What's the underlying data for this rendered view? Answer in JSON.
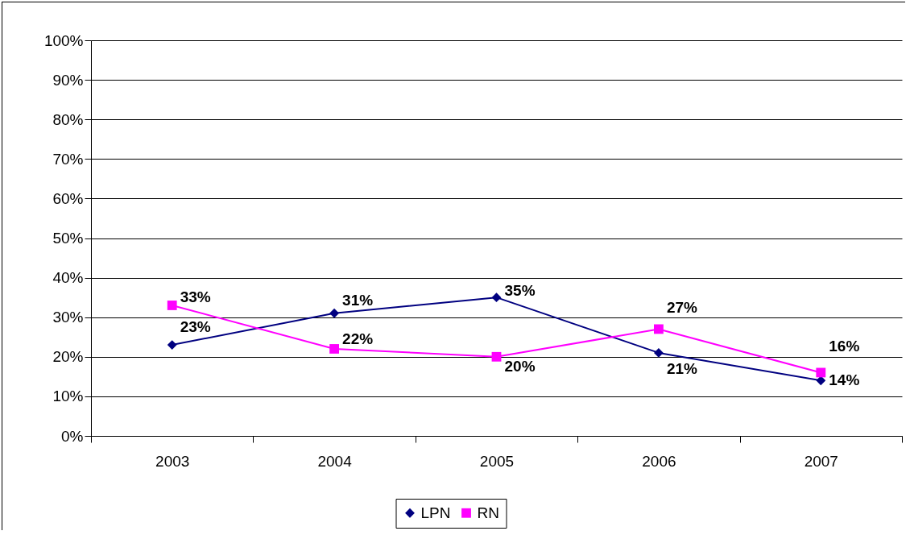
{
  "chart_data": {
    "type": "line",
    "categories": [
      "2003",
      "2004",
      "2005",
      "2006",
      "2007"
    ],
    "series": [
      {
        "name": "LPN",
        "color": "#000080",
        "marker": "diamond",
        "values": [
          23,
          31,
          35,
          21,
          14
        ],
        "value_labels": [
          "23%",
          "31%",
          "35%",
          "21%",
          "14%"
        ]
      },
      {
        "name": "RN",
        "color": "#ff00ff",
        "marker": "square",
        "values": [
          33,
          22,
          20,
          27,
          16
        ],
        "value_labels": [
          "33%",
          "22%",
          "20%",
          "27%",
          "16%"
        ]
      }
    ],
    "ylim": [
      0,
      100
    ],
    "yticks": [
      {
        "value": 0,
        "label": "0%"
      },
      {
        "value": 10,
        "label": "10%"
      },
      {
        "value": 20,
        "label": "20%"
      },
      {
        "value": 30,
        "label": "30%"
      },
      {
        "value": 40,
        "label": "40%"
      },
      {
        "value": 50,
        "label": "50%"
      },
      {
        "value": 60,
        "label": "60%"
      },
      {
        "value": 70,
        "label": "70%"
      },
      {
        "value": 80,
        "label": "80%"
      },
      {
        "value": 90,
        "label": "90%"
      },
      {
        "value": 100,
        "label": "100%"
      }
    ],
    "grid": "y",
    "legend": "bottom",
    "line_style": "solid"
  }
}
